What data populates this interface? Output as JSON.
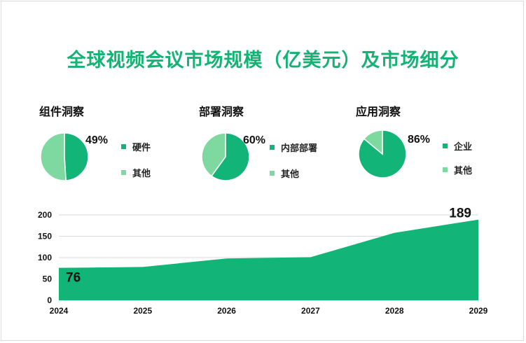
{
  "title": "全球视频会议市场规模（亿美元）及市场细分",
  "colors": {
    "primary": "#13b477",
    "secondary": "#7dd99f",
    "title": "#14b274"
  },
  "pies": [
    {
      "title": "组件洞察",
      "pct_label": "49%",
      "slices": [
        {
          "label": "硬件",
          "value": 49
        },
        {
          "label": "其他",
          "value": 51
        }
      ]
    },
    {
      "title": "部署洞察",
      "pct_label": "60%",
      "slices": [
        {
          "label": "内部部署",
          "value": 60
        },
        {
          "label": "其他",
          "value": 40
        }
      ]
    },
    {
      "title": "应用洞察",
      "pct_label": "86%",
      "slices": [
        {
          "label": "企业",
          "value": 86
        },
        {
          "label": "其他",
          "value": 14
        }
      ]
    }
  ],
  "chart_data": {
    "type": "area",
    "x": [
      "2024",
      "2025",
      "2026",
      "2027",
      "2028",
      "2029"
    ],
    "values": [
      76,
      78,
      98,
      101,
      158,
      189
    ],
    "ylim": [
      0,
      200
    ],
    "yticks": [
      "0",
      "50",
      "100",
      "150",
      "200"
    ],
    "grid": true,
    "annotations": [
      {
        "x": "2024",
        "label": "76"
      },
      {
        "x": "2029",
        "label": "189"
      }
    ]
  }
}
